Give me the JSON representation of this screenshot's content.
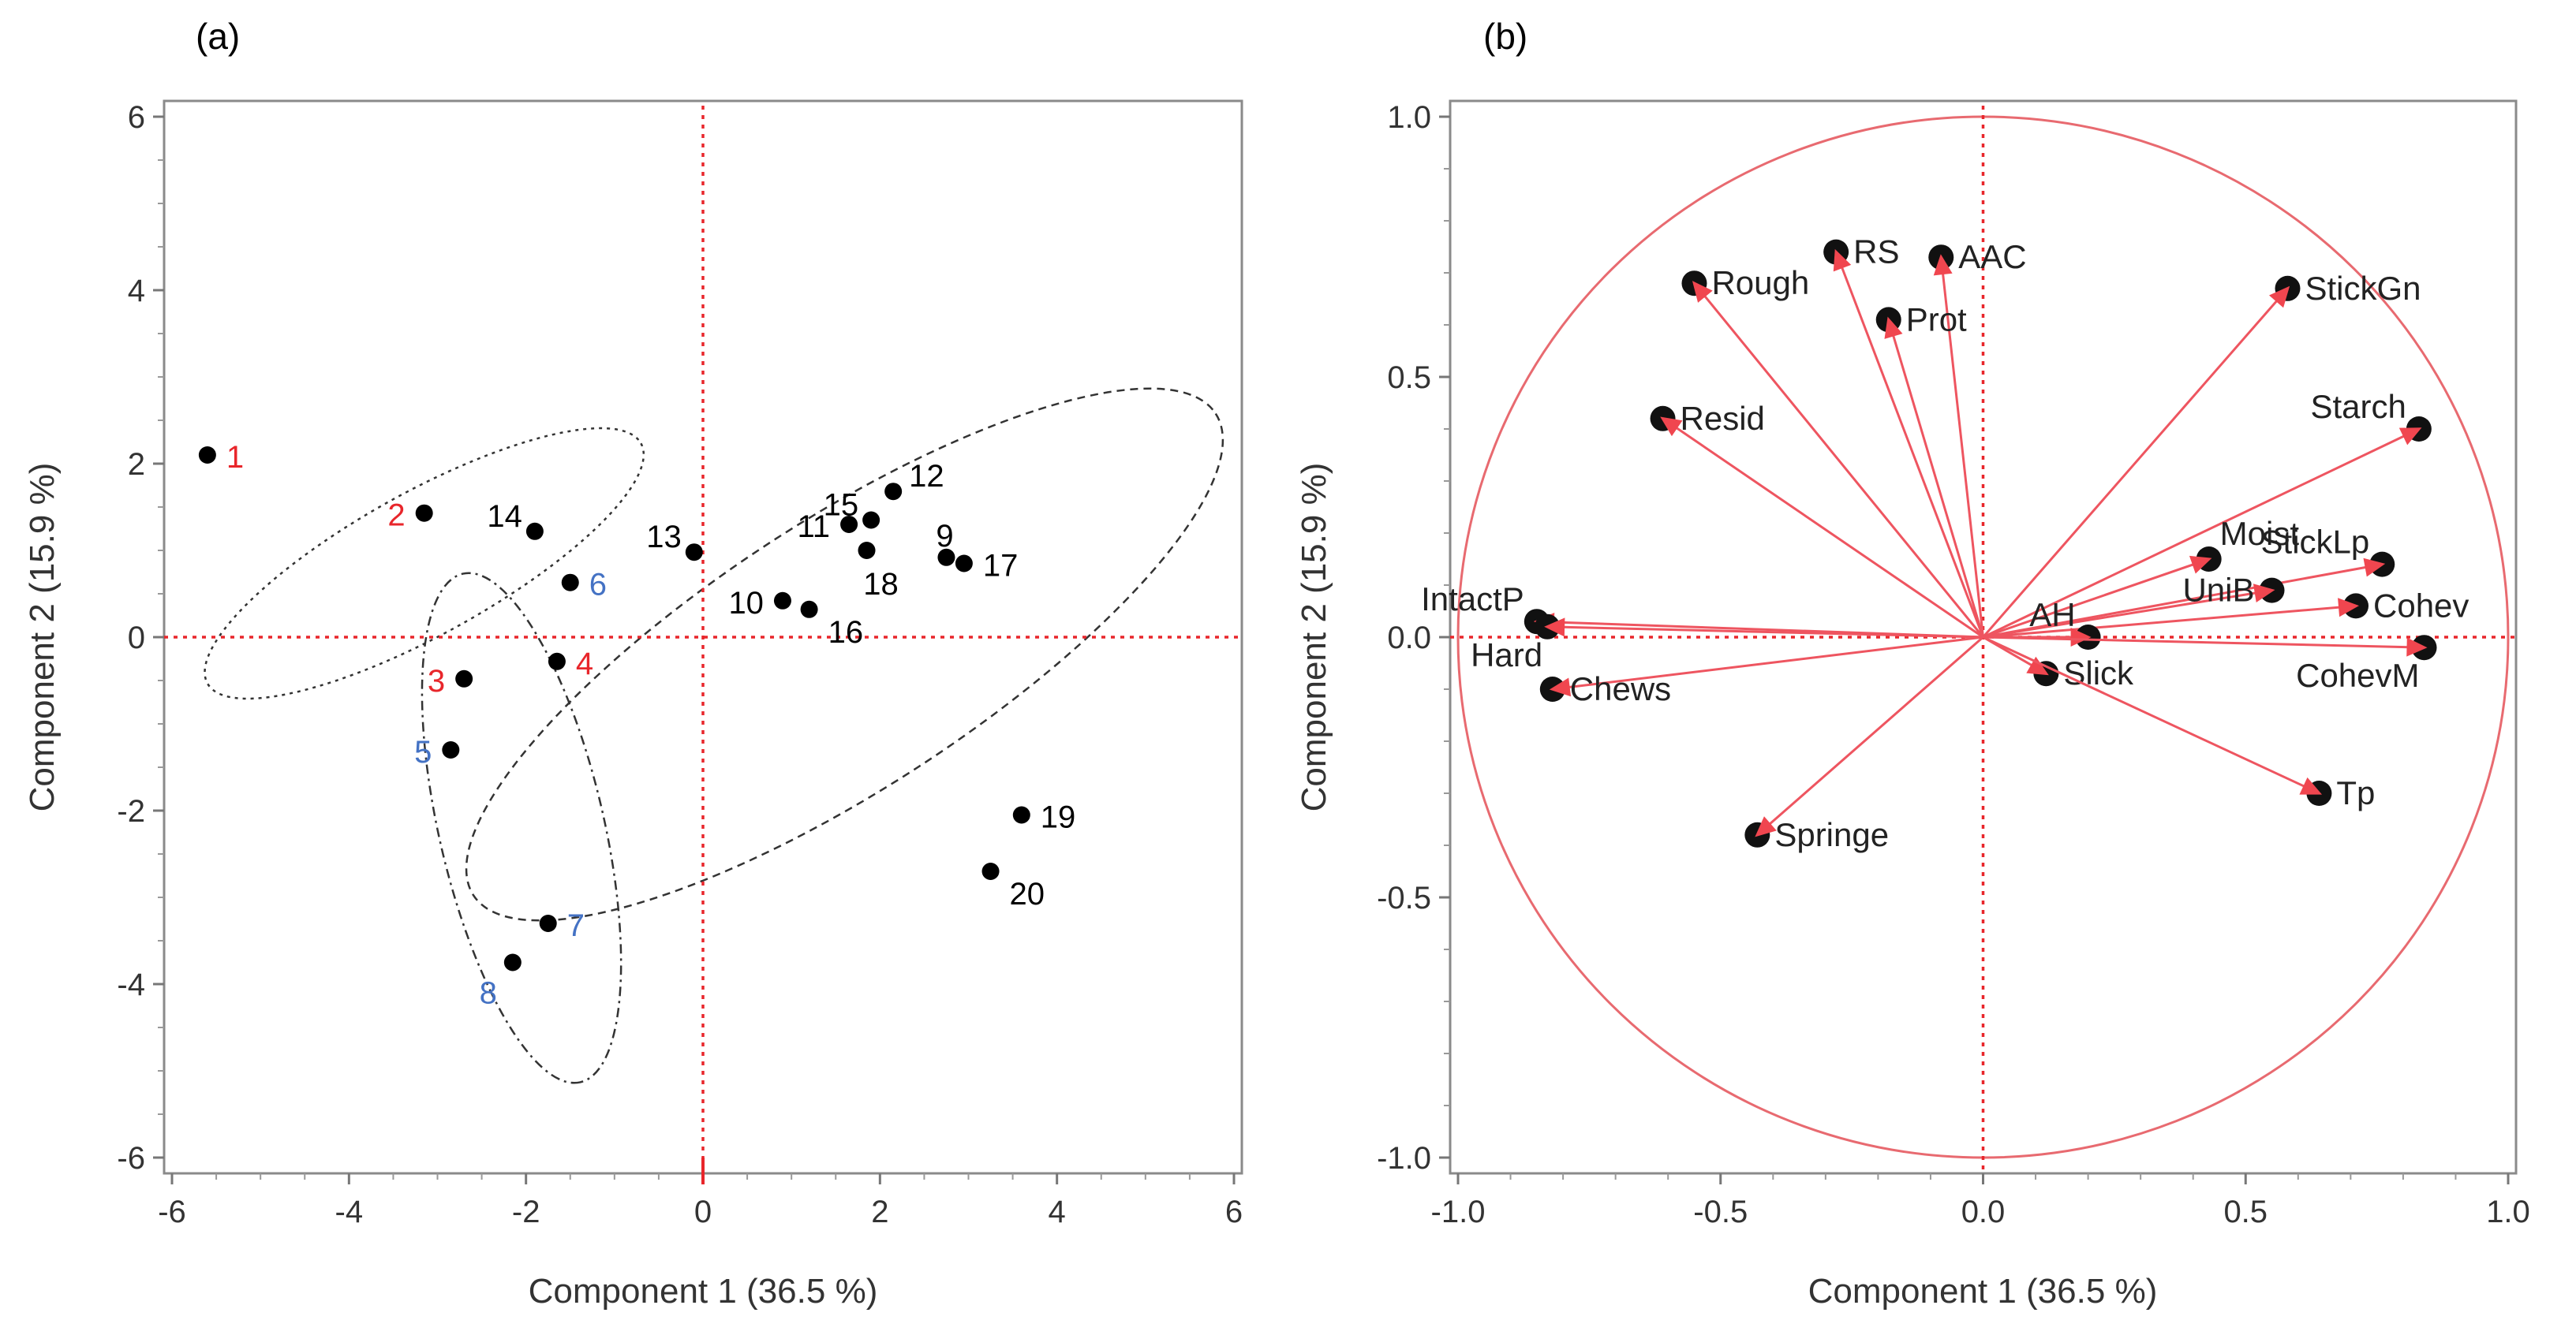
{
  "chart_data": [
    {
      "type": "scatter",
      "panel_label": "(a)",
      "title": "",
      "xlabel": "Component 1  (36.5 %)",
      "ylabel": "Component 2  (15.9 %)",
      "xlim": [
        -6,
        6
      ],
      "ylim": [
        -6,
        6
      ],
      "xticks": [
        -6,
        -4,
        -2,
        0,
        2,
        4,
        6
      ],
      "yticks": [
        -6,
        -4,
        -2,
        0,
        2,
        4,
        6
      ],
      "tick_labels_x": [
        "-6",
        "-4",
        "-2",
        "0",
        "2",
        "4",
        "6"
      ],
      "tick_labels_y": [
        "-6",
        "-4",
        "-2",
        "0",
        "2",
        "4",
        "6"
      ],
      "reference_lines": {
        "x": 0,
        "y": 0,
        "color": "#e8262b",
        "style": "dotted"
      },
      "groups": [
        {
          "name": "red",
          "color": "#e8262b",
          "ids": [
            1,
            2,
            3,
            4
          ]
        },
        {
          "name": "blue",
          "color": "#4472c4",
          "ids": [
            5,
            6,
            7,
            8
          ]
        },
        {
          "name": "black",
          "color": "#000000",
          "ids": [
            9,
            10,
            11,
            12,
            13,
            14,
            15,
            16,
            17,
            18,
            19,
            20
          ]
        }
      ],
      "points": [
        {
          "id": "1",
          "x": -5.6,
          "y": 2.1,
          "label_color": "#e8262b",
          "label_side": "right"
        },
        {
          "id": "2",
          "x": -3.15,
          "y": 1.43,
          "label_color": "#e8262b",
          "label_side": "left"
        },
        {
          "id": "3",
          "x": -2.7,
          "y": -0.48,
          "label_color": "#e8262b",
          "label_side": "left"
        },
        {
          "id": "4",
          "x": -1.65,
          "y": -0.28,
          "label_color": "#e8262b",
          "label_side": "right"
        },
        {
          "id": "5",
          "x": -2.85,
          "y": -1.3,
          "label_color": "#4472c4",
          "label_side": "left"
        },
        {
          "id": "6",
          "x": -1.5,
          "y": 0.63,
          "label_color": "#4472c4",
          "label_side": "right"
        },
        {
          "id": "7",
          "x": -1.75,
          "y": -3.3,
          "label_color": "#4472c4",
          "label_side": "right"
        },
        {
          "id": "8",
          "x": -2.15,
          "y": -3.75,
          "label_color": "#4472c4",
          "label_side": "below-left"
        },
        {
          "id": "9",
          "x": 2.75,
          "y": 0.92,
          "label_color": "#000000",
          "label_side": "above"
        },
        {
          "id": "10",
          "x": 0.9,
          "y": 0.42,
          "label_color": "#000000",
          "label_side": "left"
        },
        {
          "id": "11",
          "x": 1.65,
          "y": 1.3,
          "label_color": "#000000",
          "label_side": "left"
        },
        {
          "id": "12",
          "x": 2.15,
          "y": 1.68,
          "label_color": "#000000",
          "label_side": "above-right"
        },
        {
          "id": "13",
          "x": -0.1,
          "y": 0.98,
          "label_color": "#000000",
          "label_side": "above-left"
        },
        {
          "id": "14",
          "x": -1.9,
          "y": 1.22,
          "label_color": "#000000",
          "label_side": "above-left"
        },
        {
          "id": "15",
          "x": 1.9,
          "y": 1.35,
          "label_color": "#000000",
          "label_side": "above-left"
        },
        {
          "id": "16",
          "x": 1.2,
          "y": 0.32,
          "label_color": "#000000",
          "label_side": "below-right"
        },
        {
          "id": "17",
          "x": 2.95,
          "y": 0.85,
          "label_color": "#000000",
          "label_side": "right"
        },
        {
          "id": "18",
          "x": 1.85,
          "y": 1.0,
          "label_color": "#000000",
          "label_side": "below"
        },
        {
          "id": "19",
          "x": 3.6,
          "y": -2.05,
          "label_color": "#000000",
          "label_side": "right"
        },
        {
          "id": "20",
          "x": 3.25,
          "y": -2.7,
          "label_color": "#000000",
          "label_side": "below-right"
        }
      ],
      "ellipses": [
        {
          "name": "red-group-ellipse",
          "cx": -3.15,
          "cy": 0.85,
          "rx": 2.8,
          "ry": 0.82,
          "rotation_deg": -29,
          "style": "dotted"
        },
        {
          "name": "blue-group-ellipse",
          "cx": -2.05,
          "cy": -2.2,
          "rx": 2.95,
          "ry": 0.95,
          "rotation_deg": 77,
          "style": "dash-dot"
        },
        {
          "name": "black-group-ellipse",
          "cx": 1.6,
          "cy": -0.2,
          "rx": 5.0,
          "ry": 1.55,
          "rotation_deg": -33,
          "style": "dashed"
        }
      ]
    },
    {
      "type": "loading-plot",
      "panel_label": "(b)",
      "title": "",
      "xlabel": "Component 1  (36.5 %)",
      "ylabel": "Component 2  (15.9 %)",
      "xlim": [
        -1.0,
        1.0
      ],
      "ylim": [
        -1.0,
        1.0
      ],
      "xticks": [
        -1.0,
        -0.5,
        0.0,
        0.5,
        1.0
      ],
      "yticks": [
        -1.0,
        -0.5,
        0.0,
        0.5,
        1.0
      ],
      "tick_labels_x": [
        "-1.0",
        "-0.5",
        "0.0",
        "0.5",
        "1.0"
      ],
      "tick_labels_y": [
        "-1.0",
        "-0.5",
        "0.0",
        "0.5",
        "1.0"
      ],
      "unit_circle": true,
      "reference_lines": {
        "x": 0,
        "y": 0,
        "color": "#e8262b",
        "style": "dotted"
      },
      "vector_color": "#ee5560",
      "vectors": [
        {
          "name": "RS",
          "x": -0.28,
          "y": 0.74,
          "label_side": "right"
        },
        {
          "name": "AAC",
          "x": -0.08,
          "y": 0.73,
          "label_side": "right"
        },
        {
          "name": "Rough",
          "x": -0.55,
          "y": 0.68,
          "label_side": "right"
        },
        {
          "name": "Prot",
          "x": -0.18,
          "y": 0.61,
          "label_side": "right"
        },
        {
          "name": "StickGn",
          "x": 0.58,
          "y": 0.67,
          "label_side": "right"
        },
        {
          "name": "Resid",
          "x": -0.61,
          "y": 0.42,
          "label_side": "right"
        },
        {
          "name": "Starch",
          "x": 0.83,
          "y": 0.4,
          "label_side": "above-left"
        },
        {
          "name": "Moist",
          "x": 0.43,
          "y": 0.15,
          "label_side": "above-right"
        },
        {
          "name": "StickLp",
          "x": 0.76,
          "y": 0.14,
          "label_side": "above-left"
        },
        {
          "name": "UniB",
          "x": 0.55,
          "y": 0.09,
          "label_side": "left"
        },
        {
          "name": "Cohev",
          "x": 0.71,
          "y": 0.06,
          "label_side": "right"
        },
        {
          "name": "IntactP",
          "x": -0.85,
          "y": 0.03,
          "label_side": "above-left"
        },
        {
          "name": "AH",
          "x": 0.2,
          "y": 0.0,
          "label_side": "above-left"
        },
        {
          "name": "CohevM",
          "x": 0.84,
          "y": -0.02,
          "label_side": "below-left"
        },
        {
          "name": "Hard",
          "x": -0.83,
          "y": 0.02,
          "label_side": "below-left"
        },
        {
          "name": "Slick",
          "x": 0.12,
          "y": -0.07,
          "label_side": "right"
        },
        {
          "name": "Chews",
          "x": -0.82,
          "y": -0.1,
          "label_side": "right"
        },
        {
          "name": "Tp",
          "x": 0.64,
          "y": -0.3,
          "label_side": "right"
        },
        {
          "name": "Springe",
          "x": -0.43,
          "y": -0.38,
          "label_side": "right"
        }
      ]
    }
  ]
}
